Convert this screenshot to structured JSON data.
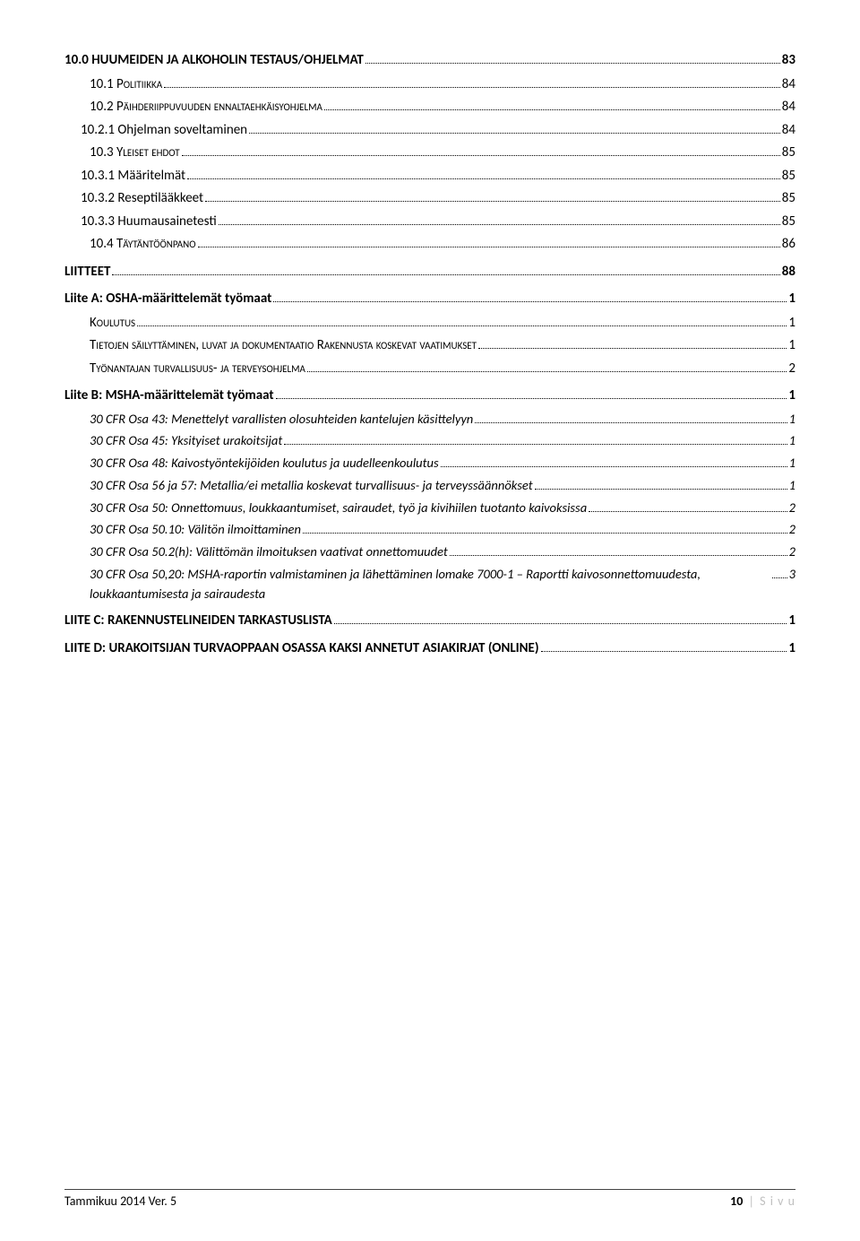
{
  "entries": [
    {
      "level": "l1",
      "label": "10.0   HUUMEIDEN JA ALKOHOLIN TESTAUS/OHJELMAT",
      "page": "83"
    },
    {
      "level": "l2",
      "label": "10.1   Politiikka",
      "page": "84"
    },
    {
      "level": "l2",
      "label": "10.2   Päihderiippuvuuden ennaltaehkäisyohjelma",
      "page": "84"
    },
    {
      "level": "l2b",
      "label": "10.2.1   Ohjelman soveltaminen",
      "page": "84"
    },
    {
      "level": "l2",
      "label": "10.3   Yleiset ehdot",
      "page": "85"
    },
    {
      "level": "l2b",
      "label": "10.3.1   Määritelmät",
      "page": "85"
    },
    {
      "level": "l2b",
      "label": "10.3.2   Reseptilääkkeet",
      "page": "85"
    },
    {
      "level": "l2b",
      "label": "10.3.3   Huumausainetesti",
      "page": "85"
    },
    {
      "level": "l2",
      "label": "10.4   Täytäntöönpano",
      "page": "86"
    },
    {
      "level": "l1",
      "label": "LIITTEET",
      "page": "88"
    },
    {
      "level": "l1",
      "label": "Liite A: OSHA-määrittelemät työmaat",
      "page": "1"
    },
    {
      "level": "l2",
      "label": "Koulutus",
      "page": "1"
    },
    {
      "level": "l2",
      "label": "Tietojen säilyttäminen, luvat ja dokumentaatio Rakennusta koskevat vaatimukset",
      "page": "1"
    },
    {
      "level": "l2",
      "label": "Työnantajan turvallisuus- ja terveysohjelma",
      "page": "2"
    },
    {
      "level": "l1",
      "label": "Liite B:  MSHA-määrittelemät työmaat",
      "page": "1"
    },
    {
      "level": "l3",
      "label": "30 CFR Osa 43:  Menettelyt varallisten olosuhteiden kantelujen käsittelyyn",
      "page": "1"
    },
    {
      "level": "l3",
      "label": "30 CFR Osa 45: Yksityiset urakoitsijat",
      "page": "1"
    },
    {
      "level": "l3",
      "label": "30 CFR Osa 48:  Kaivostyöntekijöiden koulutus ja uudelleenkoulutus",
      "page": "1"
    },
    {
      "level": "l3",
      "label": "30 CFR Osa 56 ja 57: Metallia/ei metallia koskevat turvallisuus- ja terveyssäännökset",
      "page": "1"
    },
    {
      "level": "l3",
      "label": "30 CFR Osa 50: Onnettomuus, loukkaantumiset, sairaudet, työ ja kivihiilen tuotanto kaivoksissa",
      "page": "2"
    },
    {
      "level": "l3",
      "label": "30 CFR Osa 50.10:  Välitön ilmoittaminen",
      "page": "2"
    },
    {
      "level": "l3",
      "label": "30 CFR Osa 50.2(h): Välittömän ilmoituksen vaativat onnettomuudet",
      "page": "2"
    },
    {
      "level": "l3",
      "label": "30 CFR Osa 50,20:  MSHA-raportin valmistaminen ja lähettäminen lomake 7000-1 – Raportti kaivosonnettomuudesta, loukkaantumisesta ja sairaudesta",
      "page": "3"
    },
    {
      "level": "l1",
      "label": "LIITE C: RAKENNUSTELINEIDEN TARKASTUSLISTA",
      "page": "1"
    },
    {
      "level": "l1",
      "label": "LIITE D: URAKOITSIJAN TURVAOPPAAN OSASSA KAKSI ANNETUT ASIAKIRJAT (ONLINE)",
      "page": "1"
    }
  ],
  "footer": {
    "left": "Tammikuu 2014 Ver. 5",
    "pagenum": "10",
    "pagelabel": "S i v u"
  }
}
